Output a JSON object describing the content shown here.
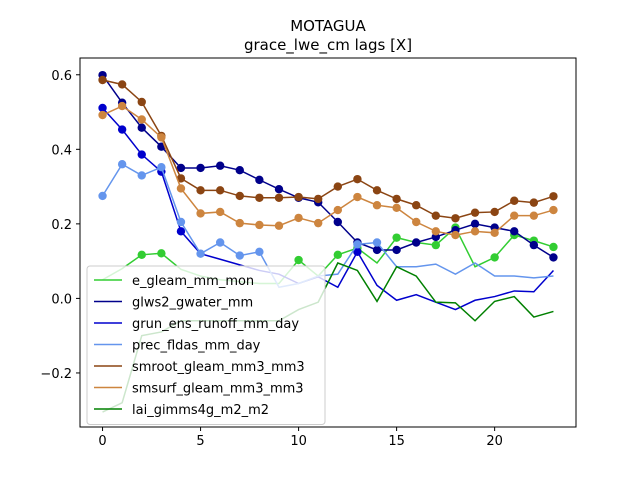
{
  "chart_data": {
    "type": "line",
    "title": "MOTAGUA",
    "subtitle": "grace_lwe_cm lags [X]",
    "xlabel": "",
    "ylabel": "",
    "xlim": [
      -1.15,
      24.15
    ],
    "ylim": [
      -0.345,
      0.645
    ],
    "xticks": [
      0,
      5,
      10,
      15,
      20
    ],
    "yticks": [
      -0.2,
      0.0,
      0.2,
      0.4,
      0.6
    ],
    "ytick_labels": [
      "−0.2",
      "0.0",
      "0.2",
      "0.4",
      "0.6"
    ],
    "grid": false,
    "legend_position": "lower-left",
    "x": [
      0,
      1,
      2,
      3,
      4,
      5,
      6,
      7,
      8,
      9,
      10,
      11,
      12,
      13,
      14,
      15,
      16,
      17,
      18,
      19,
      20,
      21,
      22,
      23
    ],
    "series": [
      {
        "name": "e_gleam_mm_mon",
        "color": "#32cd32",
        "values": [
          0.05,
          0.08,
          0.117,
          0.121,
          0.078,
          0.06,
          0.05,
          0.045,
          0.04,
          0.04,
          0.103,
          0.06,
          0.117,
          0.135,
          0.095,
          0.163,
          0.15,
          0.143,
          0.19,
          0.085,
          0.11,
          0.17,
          0.155,
          0.138
        ],
        "markers": [
          false,
          false,
          true,
          true,
          false,
          false,
          false,
          false,
          false,
          false,
          true,
          false,
          true,
          true,
          false,
          true,
          false,
          true,
          true,
          false,
          true,
          true,
          true,
          true
        ]
      },
      {
        "name": "glws2_gwater_mm",
        "color": "#00008b",
        "values": [
          0.599,
          0.525,
          0.458,
          0.407,
          0.35,
          0.35,
          0.356,
          0.344,
          0.318,
          0.293,
          0.27,
          0.258,
          0.205,
          0.15,
          0.13,
          0.13,
          0.15,
          0.165,
          0.183,
          0.2,
          0.19,
          0.18,
          0.143,
          0.11
        ],
        "markers": [
          true,
          true,
          true,
          true,
          true,
          true,
          true,
          true,
          true,
          true,
          true,
          true,
          true,
          true,
          true,
          true,
          true,
          true,
          true,
          true,
          true,
          true,
          true,
          true
        ]
      },
      {
        "name": "grun_ens_runoff_mm_day",
        "color": "#0000cd",
        "values": [
          0.511,
          0.453,
          0.386,
          0.34,
          0.18,
          0.12,
          0.105,
          0.09,
          0.075,
          0.065,
          0.04,
          0.058,
          0.03,
          0.125,
          0.035,
          -0.005,
          0.01,
          -0.01,
          -0.03,
          -0.005,
          0.005,
          0.02,
          0.018,
          0.075
        ],
        "markers": [
          true,
          true,
          true,
          true,
          true,
          false,
          false,
          false,
          false,
          false,
          false,
          false,
          false,
          true,
          false,
          false,
          false,
          false,
          false,
          false,
          false,
          false,
          false,
          false
        ]
      },
      {
        "name": "prec_fldas_mm_day",
        "color": "#6495ed",
        "values": [
          0.275,
          0.36,
          0.33,
          0.352,
          0.205,
          0.12,
          0.15,
          0.115,
          0.125,
          0.03,
          0.04,
          0.06,
          0.065,
          0.145,
          0.15,
          0.085,
          0.085,
          0.092,
          0.065,
          0.095,
          0.06,
          0.06,
          0.055,
          0.06
        ],
        "markers": [
          true,
          true,
          true,
          true,
          true,
          true,
          true,
          true,
          true,
          false,
          false,
          false,
          false,
          true,
          true,
          false,
          false,
          false,
          false,
          false,
          false,
          false,
          false,
          false
        ]
      },
      {
        "name": "smroot_gleam_mm3_mm3",
        "color": "#8b4513",
        "values": [
          0.586,
          0.574,
          0.527,
          0.436,
          0.322,
          0.29,
          0.29,
          0.275,
          0.27,
          0.27,
          0.272,
          0.267,
          0.3,
          0.32,
          0.29,
          0.267,
          0.25,
          0.222,
          0.215,
          0.23,
          0.232,
          0.262,
          0.257,
          0.274
        ],
        "markers": [
          true,
          true,
          true,
          true,
          true,
          true,
          true,
          true,
          true,
          true,
          true,
          true,
          true,
          true,
          true,
          true,
          true,
          true,
          true,
          true,
          true,
          true,
          true,
          true
        ]
      },
      {
        "name": "smsurf_gleam_mm3_mm3",
        "color": "#cd853f",
        "values": [
          0.492,
          0.516,
          0.48,
          0.432,
          0.295,
          0.228,
          0.232,
          0.202,
          0.197,
          0.195,
          0.216,
          0.202,
          0.237,
          0.272,
          0.25,
          0.243,
          0.205,
          0.18,
          0.17,
          0.18,
          0.176,
          0.222,
          0.222,
          0.237
        ],
        "markers": [
          true,
          true,
          true,
          true,
          true,
          true,
          true,
          true,
          true,
          true,
          true,
          true,
          true,
          true,
          true,
          true,
          true,
          true,
          true,
          true,
          true,
          true,
          true,
          true
        ]
      },
      {
        "name": "lai_gimms4g_m2_m2",
        "color": "#008000",
        "values": [
          -0.305,
          -0.28,
          -0.1,
          -0.09,
          -0.06,
          -0.06,
          -0.06,
          -0.06,
          -0.06,
          -0.06,
          -0.03,
          -0.01,
          0.095,
          0.075,
          -0.008,
          0.085,
          0.06,
          -0.01,
          -0.012,
          -0.06,
          -0.008,
          0.005,
          -0.05,
          -0.035
        ],
        "markers": [
          false,
          false,
          false,
          false,
          false,
          false,
          false,
          false,
          false,
          false,
          false,
          false,
          false,
          false,
          false,
          false,
          false,
          false,
          false,
          false,
          false,
          false,
          false,
          false
        ]
      }
    ]
  }
}
